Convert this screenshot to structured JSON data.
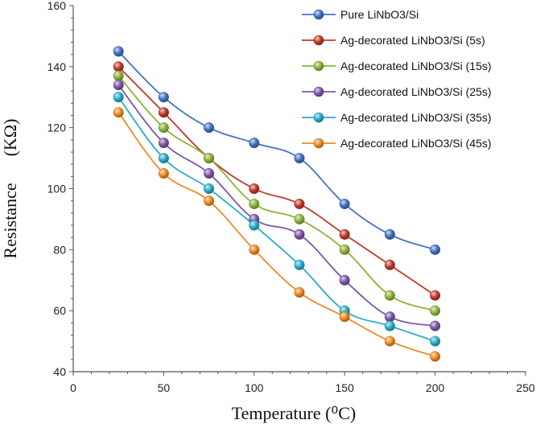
{
  "chart_data": {
    "type": "line",
    "title": "",
    "xlabel": "Temperature (⁰C)",
    "ylabel": "Resistance      (KΩ)",
    "xlim": [
      0,
      250
    ],
    "ylim": [
      40,
      160
    ],
    "xticks": [
      0,
      50,
      100,
      150,
      200,
      250
    ],
    "yticks": [
      40,
      60,
      80,
      100,
      120,
      140,
      160
    ],
    "grid": false,
    "legend_position": "top-right",
    "x": [
      25,
      50,
      75,
      100,
      125,
      150,
      175,
      200
    ],
    "series": [
      {
        "name": "Pure LiNbO3/Si",
        "color": "#4472C4",
        "values": [
          145,
          130,
          120,
          115,
          110,
          95,
          85,
          80
        ]
      },
      {
        "name": "Ag-decorated LiNbO3/Si (5s)",
        "color": "#C0392B",
        "values": [
          140,
          125,
          110,
          100,
          95,
          85,
          75,
          65
        ]
      },
      {
        "name": "Ag-decorated LiNbO3/Si (15s)",
        "color": "#8DB33A",
        "values": [
          137,
          120,
          110,
          95,
          90,
          80,
          65,
          60
        ]
      },
      {
        "name": "Ag-decorated LiNbO3/Si (25s)",
        "color": "#7E57A8",
        "values": [
          134,
          115,
          105,
          90,
          85,
          70,
          58,
          55
        ]
      },
      {
        "name": "Ag-decorated LiNbO3/Si (35s)",
        "color": "#2BACC8",
        "values": [
          130,
          110,
          100,
          88,
          75,
          60,
          55,
          50
        ]
      },
      {
        "name": "Ag-decorated LiNbO3/Si (45s)",
        "color": "#F08A24",
        "values": [
          125,
          105,
          96,
          80,
          66,
          58,
          50,
          45
        ]
      }
    ]
  }
}
